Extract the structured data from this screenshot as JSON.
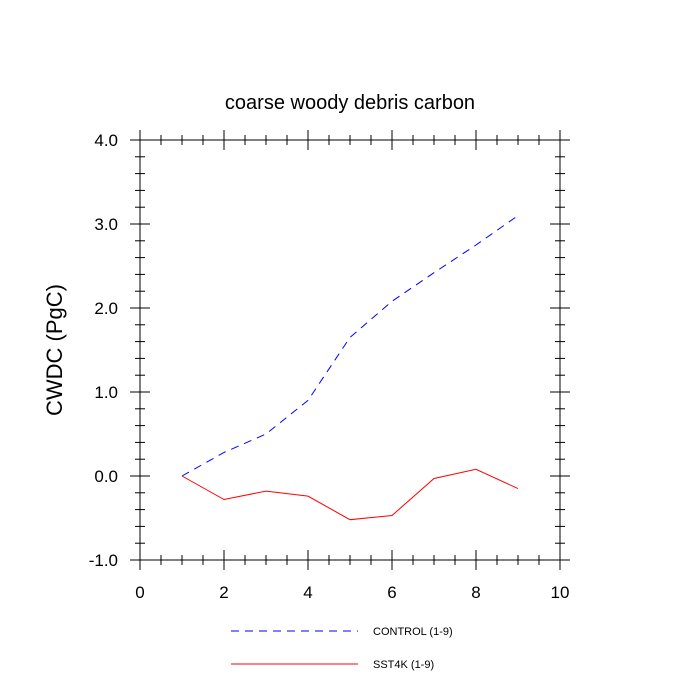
{
  "chart_data": {
    "type": "line",
    "title": "coarse woody debris carbon",
    "xlabel": "",
    "ylabel": "CWDC  (PgC)",
    "xlim": [
      0,
      10
    ],
    "ylim": [
      -1.0,
      4.0
    ],
    "x_ticks": [
      0,
      2,
      4,
      6,
      8,
      10
    ],
    "x_tick_labels": [
      "0",
      "2",
      "4",
      "6",
      "8",
      "10"
    ],
    "y_ticks": [
      -1.0,
      0.0,
      1.0,
      2.0,
      3.0,
      4.0
    ],
    "y_tick_labels": [
      "-1.0",
      "0.0",
      "1.0",
      "2.0",
      "3.0",
      "4.0"
    ],
    "grid": false,
    "legend_position": "bottom-center",
    "series": [
      {
        "name": "CONTROL (1-9)",
        "color": "#0000ff",
        "style": "dashed",
        "x": [
          1,
          2,
          3,
          4,
          5,
          6,
          7,
          8,
          9
        ],
        "y": [
          0.0,
          0.28,
          0.5,
          0.9,
          1.65,
          2.08,
          2.42,
          2.75,
          3.1
        ]
      },
      {
        "name": "SST4K (1-9)",
        "color": "#ff0000",
        "style": "solid",
        "x": [
          1,
          2,
          3,
          4,
          5,
          6,
          7,
          8,
          9
        ],
        "y": [
          0.0,
          -0.28,
          -0.18,
          -0.24,
          -0.52,
          -0.47,
          -0.03,
          0.08,
          -0.15
        ]
      }
    ]
  }
}
